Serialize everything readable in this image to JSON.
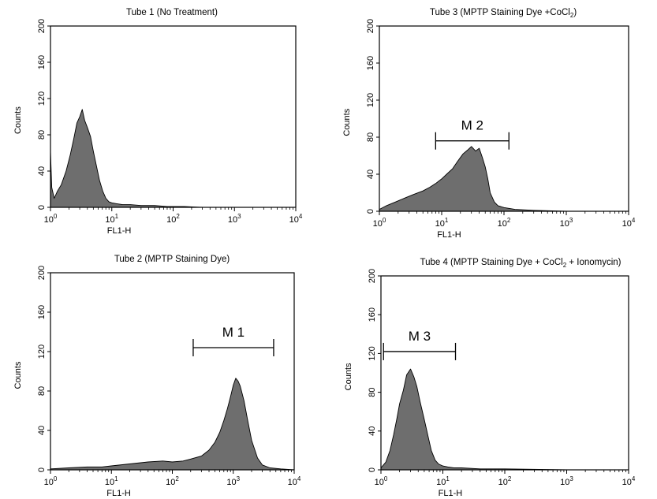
{
  "figure": {
    "colors": {
      "fill": "#6e6e6e",
      "line": "#000000",
      "background": "#ffffff"
    }
  },
  "chart_data": [
    {
      "type": "area",
      "title": "Tube 1 (No Treatment)",
      "title_main": "Tube 1 (No Treatment)",
      "title_sub": "",
      "title_tail": "",
      "xlabel": "FL1-H",
      "ylabel": "Counts",
      "xscale": "log",
      "xlim": [
        1,
        10000
      ],
      "ylim": [
        0,
        200
      ],
      "xticks": [
        "10^0",
        "10^1",
        "10^2",
        "10^3",
        "10^4"
      ],
      "yticks": [
        0,
        40,
        80,
        120,
        160,
        200
      ],
      "grid": false,
      "marker": null,
      "series": [
        {
          "x": [
            1.0,
            1.05,
            1.15,
            1.3,
            1.5,
            1.8,
            2.1,
            2.4,
            2.7,
            3.0,
            3.3,
            3.6,
            4.0,
            4.5,
            5.0,
            5.6,
            6.3,
            7.1,
            8.0,
            9.0,
            10,
            12,
            15,
            20,
            30,
            50,
            80,
            150,
            300,
            1000,
            10000
          ],
          "y": [
            62,
            22,
            10,
            18,
            25,
            40,
            58,
            76,
            93,
            100,
            108,
            96,
            88,
            78,
            62,
            46,
            30,
            18,
            10,
            6,
            5,
            4,
            3,
            3,
            2,
            2,
            1,
            1,
            0,
            0,
            0
          ]
        }
      ]
    },
    {
      "type": "area",
      "title": "Tube 3 (MPTP Staining Dye +CoCl2)",
      "title_main": "Tube 3 (MPTP Staining Dye +CoCl",
      "title_sub": "2",
      "title_tail": ")",
      "xlabel": "FL1-H",
      "ylabel": "Counts",
      "xscale": "log",
      "xlim": [
        1,
        10000
      ],
      "ylim": [
        0,
        200
      ],
      "xticks": [
        "10^0",
        "10^1",
        "10^2",
        "10^3",
        "10^4"
      ],
      "yticks": [
        0,
        40,
        80,
        120,
        160,
        200
      ],
      "grid": false,
      "marker": {
        "label": "M 2",
        "x_start": 8,
        "x_end": 120,
        "y": 76
      },
      "series": [
        {
          "x": [
            1.0,
            1.3,
            1.8,
            2.5,
            3.5,
            5,
            6.5,
            8,
            10,
            12,
            15,
            18,
            22,
            26,
            30,
            35,
            40,
            45,
            50,
            55,
            60,
            70,
            80,
            100,
            150,
            300,
            1000,
            10000
          ],
          "y": [
            2,
            6,
            10,
            14,
            18,
            22,
            26,
            30,
            35,
            40,
            46,
            54,
            62,
            66,
            70,
            65,
            68,
            58,
            48,
            35,
            20,
            10,
            6,
            4,
            2,
            1,
            0,
            0
          ]
        }
      ]
    },
    {
      "type": "area",
      "title": "Tube 2 (MPTP Staining Dye)",
      "title_main": "Tube 2 (MPTP Staining Dye)",
      "title_sub": "",
      "title_tail": "",
      "xlabel": "FL1-H",
      "ylabel": "Counts",
      "xscale": "log",
      "xlim": [
        1,
        10000
      ],
      "ylim": [
        0,
        200
      ],
      "xticks": [
        "10^0",
        "10^1",
        "10^2",
        "10^3",
        "10^4"
      ],
      "yticks": [
        0,
        40,
        80,
        120,
        160,
        200
      ],
      "grid": false,
      "marker": {
        "label": "M 1",
        "x_start": 220,
        "x_end": 4600,
        "y": 124
      },
      "series": [
        {
          "x": [
            1.0,
            2,
            4,
            7,
            10,
            20,
            40,
            70,
            100,
            150,
            200,
            300,
            400,
            500,
            600,
            700,
            800,
            900,
            1000,
            1100,
            1200,
            1300,
            1500,
            1700,
            2000,
            2500,
            3000,
            4000,
            6000,
            10000
          ],
          "y": [
            1,
            2,
            3,
            3,
            4,
            6,
            8,
            9,
            8,
            9,
            11,
            14,
            20,
            28,
            38,
            50,
            62,
            74,
            86,
            93,
            90,
            85,
            70,
            52,
            30,
            12,
            5,
            2,
            1,
            0
          ]
        }
      ]
    },
    {
      "type": "area",
      "title": "Tube 4 (MPTP Staining Dye + CoCl2 + Ionomycin)",
      "title_main": "Tube 4 (MPTP Staining Dye + CoCl",
      "title_sub": "2",
      "title_tail": " + Ionomycin)",
      "xlabel": "FL1-H",
      "ylabel": "Counts",
      "xscale": "log",
      "xlim": [
        1,
        10000
      ],
      "ylim": [
        0,
        200
      ],
      "xticks": [
        "10^0",
        "10^1",
        "10^2",
        "10^3",
        "10^4"
      ],
      "yticks": [
        0,
        40,
        80,
        120,
        160,
        200
      ],
      "grid": false,
      "marker": {
        "label": "M 3",
        "x_start": 1.1,
        "x_end": 16,
        "y": 122
      },
      "series": [
        {
          "x": [
            1.0,
            1.2,
            1.4,
            1.6,
            1.8,
            2.0,
            2.3,
            2.6,
            3.0,
            3.4,
            3.8,
            4.3,
            5.0,
            5.8,
            6.5,
            7.5,
            8.5,
            10,
            12,
            15,
            20,
            40,
            100,
            1000,
            10000
          ],
          "y": [
            2,
            8,
            20,
            36,
            52,
            68,
            82,
            98,
            104,
            96,
            86,
            70,
            52,
            34,
            20,
            10,
            6,
            4,
            3,
            2,
            2,
            1,
            1,
            0,
            0
          ]
        }
      ]
    }
  ]
}
